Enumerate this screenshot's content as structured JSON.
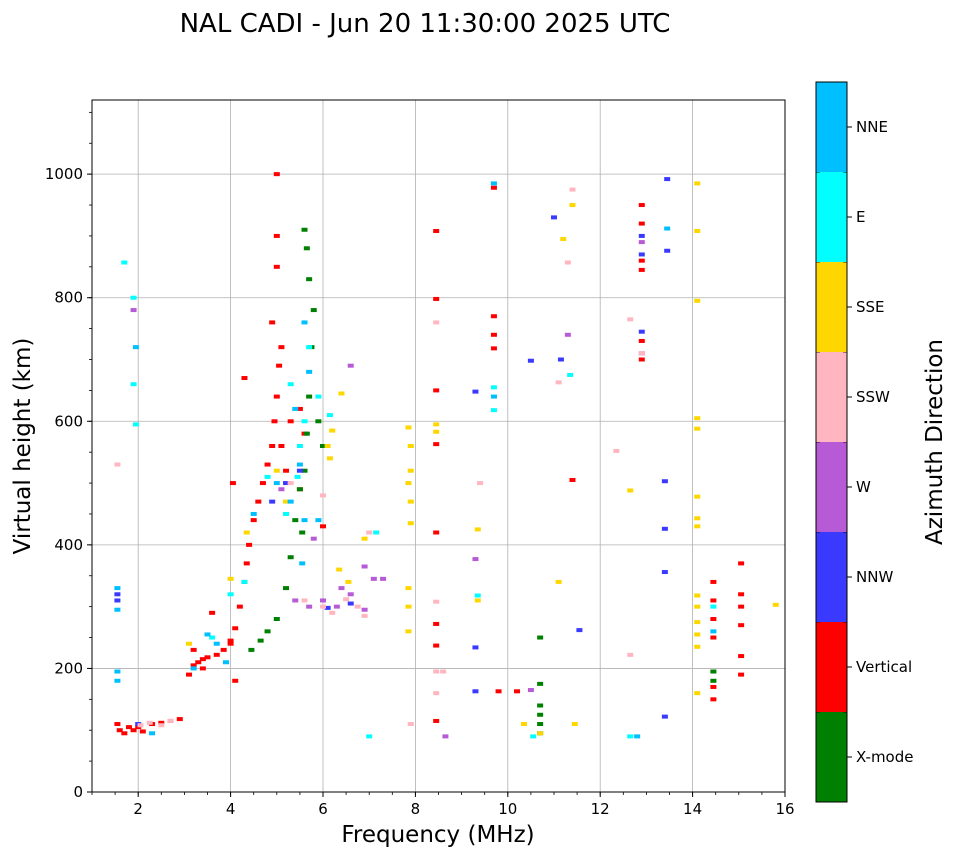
{
  "chart_data": {
    "type": "scatter",
    "title": "NAL CADI - Jun 20 11:30:00 2025 UTC",
    "xlabel": "Frequency (MHz)",
    "ylabel": "Virtual height (km)",
    "xlim": [
      1,
      16
    ],
    "ylim": [
      0,
      1120
    ],
    "xticks": [
      2,
      4,
      6,
      8,
      10,
      12,
      14,
      16
    ],
    "yticks": [
      0,
      200,
      400,
      600,
      800,
      1000
    ],
    "grid": true,
    "colorbar": {
      "label": "Azimuth Direction",
      "categories": [
        {
          "name": "X-mode",
          "color": "#008000"
        },
        {
          "name": "Vertical",
          "color": "#ff0000"
        },
        {
          "name": "NNW",
          "color": "#3a3aff"
        },
        {
          "name": "W",
          "color": "#b65ad6"
        },
        {
          "name": "SSW",
          "color": "#ffb6c1"
        },
        {
          "name": "SSE",
          "color": "#ffd700"
        },
        {
          "name": "E",
          "color": "#00ffff"
        },
        {
          "name": "NNE",
          "color": "#00bfff"
        }
      ]
    },
    "series": [
      {
        "name": "Vertical",
        "points": [
          [
            1.55,
            110
          ],
          [
            1.6,
            100
          ],
          [
            1.7,
            95
          ],
          [
            1.8,
            105
          ],
          [
            1.9,
            100
          ],
          [
            2.0,
            105
          ],
          [
            2.1,
            98
          ],
          [
            2.3,
            110
          ],
          [
            2.5,
            112
          ],
          [
            2.7,
            115
          ],
          [
            2.9,
            118
          ],
          [
            3.1,
            190
          ],
          [
            3.2,
            205
          ],
          [
            3.3,
            210
          ],
          [
            3.4,
            215
          ],
          [
            3.5,
            218
          ],
          [
            3.7,
            222
          ],
          [
            3.85,
            230
          ],
          [
            4.0,
            245
          ],
          [
            4.1,
            265
          ],
          [
            4.2,
            300
          ],
          [
            4.3,
            340
          ],
          [
            4.35,
            370
          ],
          [
            4.4,
            400
          ],
          [
            4.5,
            440
          ],
          [
            4.6,
            470
          ],
          [
            4.7,
            500
          ],
          [
            4.8,
            530
          ],
          [
            4.9,
            560
          ],
          [
            4.95,
            600
          ],
          [
            5.0,
            640
          ],
          [
            5.05,
            690
          ],
          [
            5.1,
            720
          ],
          [
            4.9,
            760
          ],
          [
            5.0,
            850
          ],
          [
            5.0,
            900
          ],
          [
            5.0,
            1000
          ],
          [
            4.3,
            670
          ],
          [
            4.05,
            500
          ],
          [
            3.6,
            290
          ],
          [
            3.2,
            230
          ],
          [
            3.4,
            200
          ],
          [
            4.0,
            240
          ],
          [
            4.1,
            180
          ],
          [
            5.3,
            600
          ],
          [
            5.5,
            620
          ],
          [
            5.6,
            580
          ],
          [
            6.0,
            430
          ],
          [
            5.5,
            490
          ],
          [
            5.1,
            560
          ],
          [
            5.2,
            520
          ],
          [
            8.45,
            908
          ],
          [
            8.45,
            798
          ],
          [
            8.45,
            650
          ],
          [
            8.45,
            563
          ],
          [
            8.45,
            420
          ],
          [
            8.45,
            272
          ],
          [
            8.45,
            237
          ],
          [
            8.45,
            115
          ],
          [
            9.7,
            978
          ],
          [
            9.7,
            770
          ],
          [
            9.7,
            740
          ],
          [
            9.7,
            718
          ],
          [
            9.8,
            163
          ],
          [
            10.2,
            163
          ],
          [
            12.9,
            950
          ],
          [
            12.9,
            920
          ],
          [
            12.9,
            860
          ],
          [
            12.9,
            845
          ],
          [
            12.9,
            730
          ],
          [
            12.9,
            700
          ],
          [
            14.45,
            340
          ],
          [
            14.45,
            310
          ],
          [
            14.45,
            280
          ],
          [
            14.45,
            250
          ],
          [
            14.45,
            170
          ],
          [
            14.45,
            150
          ],
          [
            15.05,
            370
          ],
          [
            15.05,
            320
          ],
          [
            15.05,
            300
          ],
          [
            15.05,
            270
          ],
          [
            15.05,
            220
          ],
          [
            15.05,
            190
          ],
          [
            11.4,
            505
          ]
        ]
      },
      {
        "name": "X-mode",
        "points": [
          [
            4.45,
            230
          ],
          [
            4.65,
            245
          ],
          [
            4.8,
            260
          ],
          [
            5.0,
            280
          ],
          [
            5.2,
            330
          ],
          [
            5.3,
            380
          ],
          [
            5.4,
            440
          ],
          [
            5.5,
            490
          ],
          [
            5.6,
            520
          ],
          [
            5.65,
            580
          ],
          [
            5.7,
            640
          ],
          [
            5.75,
            720
          ],
          [
            5.8,
            780
          ],
          [
            5.7,
            830
          ],
          [
            5.65,
            880
          ],
          [
            5.6,
            910
          ],
          [
            5.9,
            600
          ],
          [
            6.0,
            560
          ],
          [
            5.55,
            420
          ],
          [
            10.7,
            250
          ],
          [
            10.7,
            175
          ],
          [
            10.7,
            140
          ],
          [
            10.7,
            125
          ],
          [
            10.7,
            110
          ],
          [
            10.7,
            95
          ],
          [
            14.45,
            195
          ],
          [
            14.45,
            180
          ]
        ]
      },
      {
        "name": "NNW",
        "points": [
          [
            1.55,
            320
          ],
          [
            1.55,
            310
          ],
          [
            2.0,
            110
          ],
          [
            4.9,
            470
          ],
          [
            5.2,
            500
          ],
          [
            5.5,
            520
          ],
          [
            6.1,
            298
          ],
          [
            6.6,
            305
          ],
          [
            9.3,
            648
          ],
          [
            9.3,
            234
          ],
          [
            9.3,
            163
          ],
          [
            10.5,
            698
          ],
          [
            11.0,
            930
          ],
          [
            11.15,
            700
          ],
          [
            11.55,
            262
          ],
          [
            12.9,
            900
          ],
          [
            12.9,
            870
          ],
          [
            12.9,
            745
          ],
          [
            13.45,
            992
          ],
          [
            13.45,
            876
          ],
          [
            13.4,
            503
          ],
          [
            13.4,
            426
          ],
          [
            13.4,
            356
          ],
          [
            13.4,
            122
          ]
        ]
      },
      {
        "name": "W",
        "points": [
          [
            5.4,
            310
          ],
          [
            5.7,
            300
          ],
          [
            6.0,
            310
          ],
          [
            6.3,
            300
          ],
          [
            6.6,
            320
          ],
          [
            6.9,
            295
          ],
          [
            7.1,
            345
          ],
          [
            5.1,
            490
          ],
          [
            5.8,
            410
          ],
          [
            6.4,
            330
          ],
          [
            6.9,
            365
          ],
          [
            7.3,
            345
          ],
          [
            1.9,
            780
          ],
          [
            6.6,
            690
          ],
          [
            9.3,
            377
          ],
          [
            10.5,
            165
          ],
          [
            11.3,
            740
          ],
          [
            12.9,
            710
          ],
          [
            12.9,
            890
          ],
          [
            8.65,
            90
          ]
        ]
      },
      {
        "name": "SSW",
        "points": [
          [
            2.05,
            108
          ],
          [
            2.25,
            112
          ],
          [
            2.5,
            108
          ],
          [
            2.7,
            115
          ],
          [
            5.6,
            310
          ],
          [
            6.0,
            300
          ],
          [
            6.2,
            290
          ],
          [
            6.5,
            312
          ],
          [
            6.75,
            300
          ],
          [
            6.9,
            285
          ],
          [
            5.3,
            500
          ],
          [
            6.0,
            480
          ],
          [
            7.0,
            420
          ],
          [
            1.55,
            530
          ],
          [
            8.45,
            760
          ],
          [
            8.45,
            308
          ],
          [
            8.45,
            195
          ],
          [
            8.6,
            195
          ],
          [
            8.45,
            160
          ],
          [
            9.4,
            500
          ],
          [
            11.3,
            857
          ],
          [
            11.4,
            975
          ],
          [
            12.35,
            552
          ],
          [
            12.65,
            765
          ],
          [
            12.65,
            222
          ],
          [
            11.1,
            663
          ],
          [
            7.9,
            110
          ],
          [
            12.9,
            710
          ]
        ]
      },
      {
        "name": "SSE",
        "points": [
          [
            3.1,
            240
          ],
          [
            4.0,
            345
          ],
          [
            4.35,
            420
          ],
          [
            5.0,
            520
          ],
          [
            5.2,
            470
          ],
          [
            6.1,
            560
          ],
          [
            6.15,
            540
          ],
          [
            6.2,
            585
          ],
          [
            6.4,
            645
          ],
          [
            6.35,
            360
          ],
          [
            6.55,
            340
          ],
          [
            6.9,
            410
          ],
          [
            7.85,
            590
          ],
          [
            7.9,
            560
          ],
          [
            7.9,
            520
          ],
          [
            7.85,
            500
          ],
          [
            7.9,
            470
          ],
          [
            7.9,
            435
          ],
          [
            7.85,
            330
          ],
          [
            7.85,
            300
          ],
          [
            7.85,
            260
          ],
          [
            8.45,
            595
          ],
          [
            8.45,
            583
          ],
          [
            9.35,
            425
          ],
          [
            9.35,
            310
          ],
          [
            10.35,
            110
          ],
          [
            10.7,
            95
          ],
          [
            11.1,
            340
          ],
          [
            11.2,
            895
          ],
          [
            11.4,
            950
          ],
          [
            11.45,
            110
          ],
          [
            12.65,
            488
          ],
          [
            14.1,
            985
          ],
          [
            14.1,
            908
          ],
          [
            14.1,
            795
          ],
          [
            14.1,
            605
          ],
          [
            14.1,
            588
          ],
          [
            14.1,
            478
          ],
          [
            14.1,
            443
          ],
          [
            14.1,
            430
          ],
          [
            14.1,
            318
          ],
          [
            14.1,
            300
          ],
          [
            14.1,
            275
          ],
          [
            14.1,
            255
          ],
          [
            14.1,
            235
          ],
          [
            14.1,
            160
          ],
          [
            15.8,
            303
          ]
        ]
      },
      {
        "name": "E",
        "points": [
          [
            1.7,
            857
          ],
          [
            1.9,
            800
          ],
          [
            1.95,
            595
          ],
          [
            1.9,
            660
          ],
          [
            3.6,
            250
          ],
          [
            4.0,
            320
          ],
          [
            4.3,
            340
          ],
          [
            4.8,
            510
          ],
          [
            5.2,
            450
          ],
          [
            5.45,
            510
          ],
          [
            5.5,
            560
          ],
          [
            5.6,
            600
          ],
          [
            5.7,
            720
          ],
          [
            5.3,
            660
          ],
          [
            5.9,
            640
          ],
          [
            6.15,
            610
          ],
          [
            7.15,
            420
          ],
          [
            7.0,
            90
          ],
          [
            9.35,
            318
          ],
          [
            9.7,
            655
          ],
          [
            9.7,
            618
          ],
          [
            10.55,
            90
          ],
          [
            11.35,
            675
          ],
          [
            12.65,
            90
          ],
          [
            14.45,
            300
          ]
        ]
      },
      {
        "name": "NNE",
        "points": [
          [
            1.55,
            330
          ],
          [
            1.55,
            295
          ],
          [
            1.55,
            195
          ],
          [
            1.55,
            180
          ],
          [
            2.3,
            95
          ],
          [
            3.2,
            200
          ],
          [
            3.5,
            255
          ],
          [
            3.7,
            240
          ],
          [
            3.9,
            210
          ],
          [
            4.5,
            450
          ],
          [
            5.0,
            500
          ],
          [
            5.3,
            470
          ],
          [
            5.5,
            530
          ],
          [
            5.7,
            680
          ],
          [
            5.6,
            760
          ],
          [
            5.4,
            620
          ],
          [
            5.55,
            370
          ],
          [
            5.6,
            440
          ],
          [
            5.9,
            440
          ],
          [
            1.95,
            720
          ],
          [
            9.7,
            640
          ],
          [
            9.7,
            985
          ],
          [
            13.45,
            912
          ],
          [
            12.8,
            90
          ],
          [
            14.45,
            260
          ]
        ]
      }
    ]
  }
}
